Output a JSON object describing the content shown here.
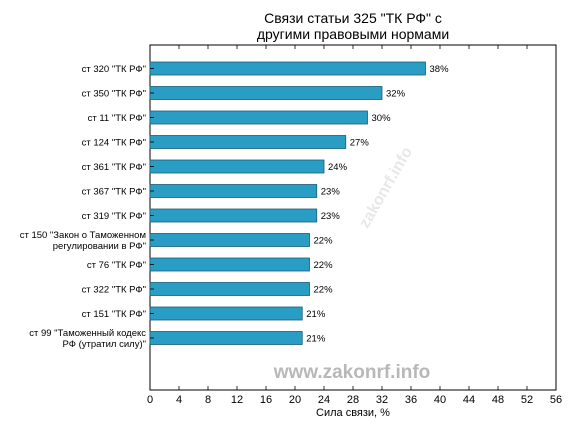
{
  "chart_data": {
    "type": "bar",
    "orientation": "horizontal",
    "title": [
      "Связи статьи 325 \"ТК РФ\" с",
      "другими правовыми нормами"
    ],
    "xlabel": "Сила связи, %",
    "ylabel": "",
    "xlim": [
      0,
      56
    ],
    "xticks": [
      0,
      4,
      8,
      12,
      16,
      20,
      24,
      28,
      32,
      36,
      40,
      44,
      48,
      52,
      56
    ],
    "grid": false,
    "bar_color": "#2a9dc4",
    "bar_edge_color": "#1a5e78",
    "categories": [
      [
        "ст 320 \"ТК РФ\""
      ],
      [
        "ст 350 \"ТК РФ\""
      ],
      [
        "ст 11 \"ТК РФ\""
      ],
      [
        "ст 124 \"ТК РФ\""
      ],
      [
        "ст 361 \"ТК РФ\""
      ],
      [
        "ст 367 \"ТК РФ\""
      ],
      [
        "ст 319 \"ТК РФ\""
      ],
      [
        "ст 150 \"Закон о Таможенном",
        "регулировании в РФ\""
      ],
      [
        "ст 76 \"ТК РФ\""
      ],
      [
        "ст 322 \"ТК РФ\""
      ],
      [
        "ст 151 \"ТК РФ\""
      ],
      [
        "ст 99 \"Таможенный кодекс",
        "РФ (утратил силу)\""
      ]
    ],
    "values": [
      38,
      32,
      30,
      27,
      24,
      23,
      23,
      22,
      22,
      22,
      21,
      21
    ],
    "value_labels": [
      "38%",
      "32%",
      "30%",
      "27%",
      "24%",
      "23%",
      "23%",
      "22%",
      "22%",
      "22%",
      "21%",
      "21%"
    ]
  },
  "watermark": "www.zakonrf.info",
  "watermark_diagonal": "zakonrf.info"
}
